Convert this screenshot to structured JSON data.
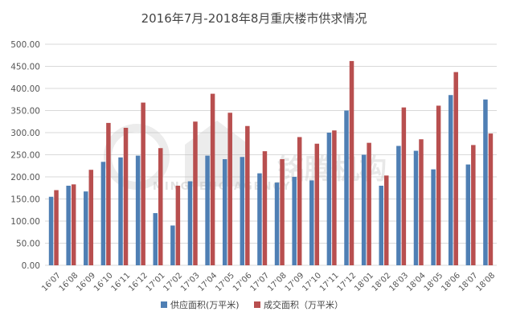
{
  "chart_data": {
    "type": "bar",
    "title": "2016年7月-2018年8月重庆楼市供求情况",
    "categories": [
      "16'07",
      "16'08",
      "16'09",
      "16'10",
      "16'11",
      "16'12",
      "17'01",
      "17'02",
      "17'03",
      "17'04",
      "17'05",
      "17'06",
      "17'07",
      "17'08",
      "17'09",
      "17'10",
      "17'11",
      "17'12",
      "18'01",
      "18'02",
      "18'03",
      "18'04",
      "18'05",
      "18'06",
      "18'07",
      "18'08"
    ],
    "series": [
      {
        "name": "供应面积(万平米)",
        "color": "#4f7fb4",
        "values": [
          155,
          180,
          167,
          234,
          244,
          248,
          118,
          90,
          190,
          248,
          240,
          245,
          208,
          187,
          200,
          192,
          300,
          350,
          250,
          180,
          270,
          259,
          217,
          385,
          228,
          375
        ]
      },
      {
        "name": "成交面积（万平米）",
        "color": "#b84f4f",
        "values": [
          170,
          183,
          216,
          322,
          311,
          368,
          265,
          180,
          325,
          388,
          345,
          315,
          258,
          240,
          290,
          275,
          305,
          462,
          277,
          203,
          357,
          285,
          361,
          437,
          272,
          298
        ]
      }
    ],
    "ylim": [
      0,
      500
    ],
    "yticks": [
      "0.00",
      "50.00",
      "100.00",
      "150.00",
      "200.00",
      "250.00",
      "300.00",
      "350.00",
      "400.00",
      "450.00",
      "500.00"
    ],
    "grid": true,
    "legend_position": "bottom"
  },
  "watermark": {
    "main": "铭腾机构",
    "sub": "MINGTENG AGENCY"
  }
}
